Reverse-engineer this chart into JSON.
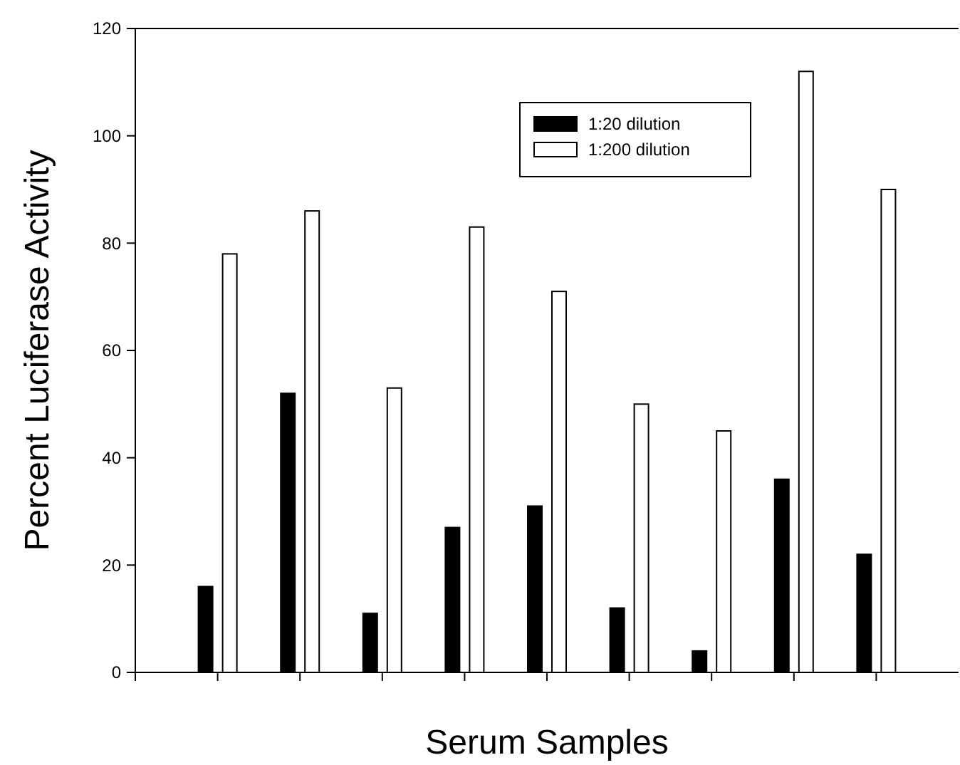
{
  "chart_data": {
    "type": "bar",
    "xlabel": "Serum Samples",
    "ylabel": "Percent Luciferase Activity",
    "categories": [
      null,
      null,
      null,
      null,
      null,
      null,
      null,
      null,
      null
    ],
    "series": [
      {
        "name": "1:20 dilution",
        "color": "#000000",
        "values": [
          16,
          52,
          11,
          27,
          31,
          12,
          4,
          36,
          22
        ]
      },
      {
        "name": "1:200 dilution",
        "color": "#ffffff",
        "values": [
          78,
          86,
          53,
          83,
          71,
          50,
          45,
          112,
          90
        ]
      }
    ],
    "ylim": [
      0,
      120
    ],
    "yticks": [
      0,
      20,
      40,
      60,
      80,
      100,
      120
    ],
    "grid": false,
    "legend": "top"
  }
}
